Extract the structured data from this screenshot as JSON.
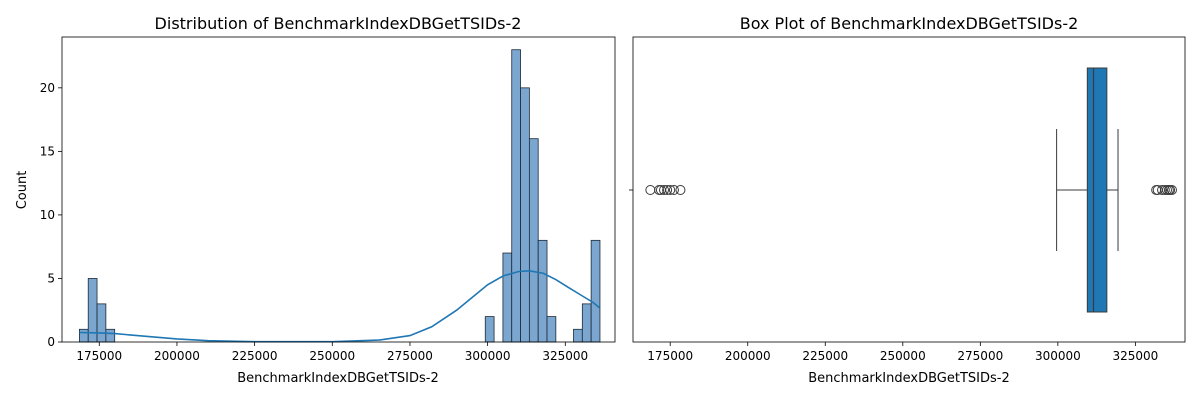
{
  "chart_data": [
    {
      "type": "bar",
      "title": "Distribution of BenchmarkIndexDBGetTSIDs-2",
      "xlabel": "BenchmarkIndexDBGetTSIDs-2",
      "ylabel": "Count",
      "xlim": [
        163000,
        341000
      ],
      "ylim": [
        0,
        24
      ],
      "xticks": [
        175000,
        200000,
        225000,
        250000,
        275000,
        300000,
        325000
      ],
      "xtick_labels": [
        "175000",
        "200000",
        "225000",
        "250000",
        "275000",
        "300000",
        "325000"
      ],
      "yticks": [
        0,
        5,
        10,
        15,
        20
      ],
      "ytick_labels": [
        "0",
        "5",
        "10",
        "15",
        "20"
      ],
      "bin_width": 2840,
      "bins": [
        {
          "x0": 168600,
          "count": 1
        },
        {
          "x0": 171440,
          "count": 5
        },
        {
          "x0": 174280,
          "count": 3
        },
        {
          "x0": 177120,
          "count": 1
        },
        {
          "x0": 299240,
          "count": 2
        },
        {
          "x0": 304920,
          "count": 7
        },
        {
          "x0": 307760,
          "count": 23
        },
        {
          "x0": 310600,
          "count": 20
        },
        {
          "x0": 313440,
          "count": 16
        },
        {
          "x0": 316280,
          "count": 8
        },
        {
          "x0": 319120,
          "count": 2
        },
        {
          "x0": 327640,
          "count": 1
        },
        {
          "x0": 330480,
          "count": 3
        },
        {
          "x0": 333320,
          "count": 8
        }
      ],
      "kde": {
        "x": [
          168600,
          175000,
          180000,
          190000,
          200000,
          210000,
          225000,
          250000,
          265000,
          275000,
          282000,
          290000,
          295000,
          300000,
          305000,
          310000,
          313500,
          318000,
          322000,
          326000,
          330000,
          334000,
          336000
        ],
        "y": [
          0.75,
          0.72,
          0.66,
          0.45,
          0.24,
          0.1,
          0.02,
          0.02,
          0.15,
          0.5,
          1.2,
          2.5,
          3.5,
          4.5,
          5.2,
          5.55,
          5.6,
          5.4,
          4.9,
          4.3,
          3.7,
          3.1,
          2.7
        ]
      },
      "colors": {
        "bar_fill": "#7aa6cf",
        "bar_edge": "#1f2a36",
        "kde_line": "#1f77b4"
      }
    },
    {
      "type": "box",
      "title": "Box Plot of BenchmarkIndexDBGetTSIDs-2",
      "xlabel": "BenchmarkIndexDBGetTSIDs-2",
      "xlim": [
        163000,
        341000
      ],
      "xticks": [
        175000,
        200000,
        225000,
        250000,
        275000,
        300000,
        325000
      ],
      "xtick_labels": [
        "175000",
        "200000",
        "225000",
        "250000",
        "275000",
        "300000",
        "325000"
      ],
      "box": {
        "whisker_low": 299600,
        "q1": 309500,
        "median": 311500,
        "q3": 315800,
        "whisker_high": 319400
      },
      "outliers": [
        168600,
        171400,
        172000,
        173000,
        174000,
        175000,
        176200,
        178300,
        331700,
        332200,
        333600,
        334500,
        335200,
        335800,
        336200,
        336800
      ],
      "colors": {
        "box_fill": "#1f77b4",
        "line": "#3b3b3b",
        "outlier_edge": "#3b3b3b"
      }
    }
  ]
}
